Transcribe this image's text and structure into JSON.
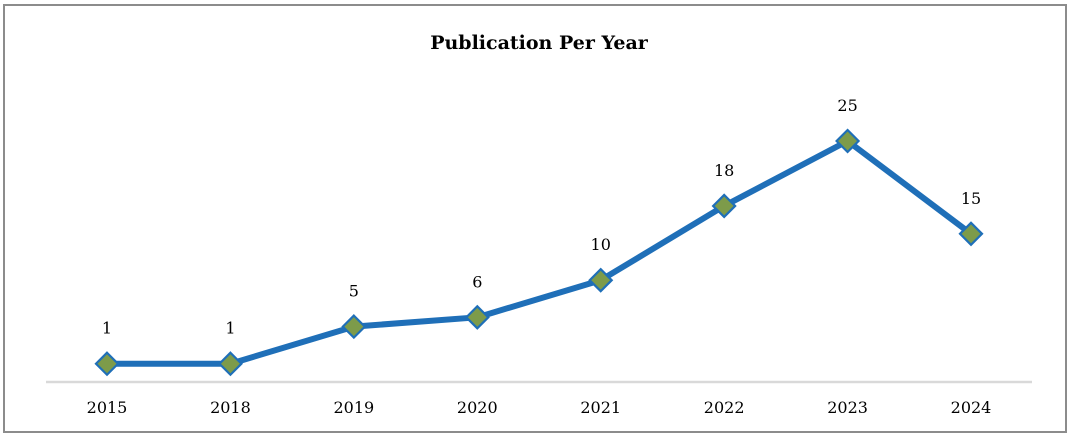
{
  "chart_data": {
    "type": "line",
    "title": "Publication Per Year",
    "categories": [
      "2015",
      "2018",
      "2019",
      "2020",
      "2021",
      "2022",
      "2023",
      "2024"
    ],
    "series": [
      {
        "values": [
          1,
          1,
          5,
          6,
          10,
          18,
          25,
          15
        ]
      }
    ],
    "ylim": [
      0,
      25
    ],
    "grid": false,
    "legend": "none",
    "data_labels": true,
    "colors": {
      "line": "#1f6fb8",
      "marker_fill": "#7d9b4a",
      "marker_stroke": "#1f6fb8",
      "axis": "#d9d9d9"
    }
  }
}
